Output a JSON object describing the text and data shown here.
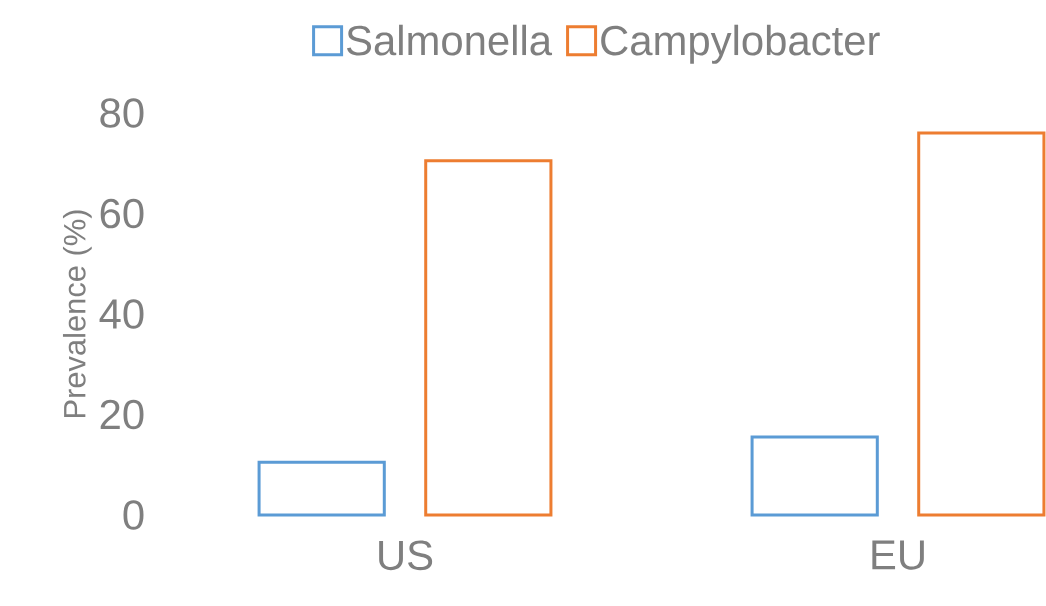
{
  "chart_data": {
    "type": "bar",
    "categories": [
      "US",
      "EU"
    ],
    "ylabel": "Prevalence (%)",
    "series": [
      {
        "name": "Salmonella",
        "color": "#5b9bd5",
        "values": [
          10.5,
          15.5
        ]
      },
      {
        "name": "Campylobacter",
        "color": "#ed7d31",
        "values": [
          70.5,
          76
        ]
      }
    ],
    "ylim": [
      0,
      80
    ],
    "yticks": [
      0,
      20,
      40,
      60,
      80
    ],
    "grid": false,
    "legend": "top"
  }
}
